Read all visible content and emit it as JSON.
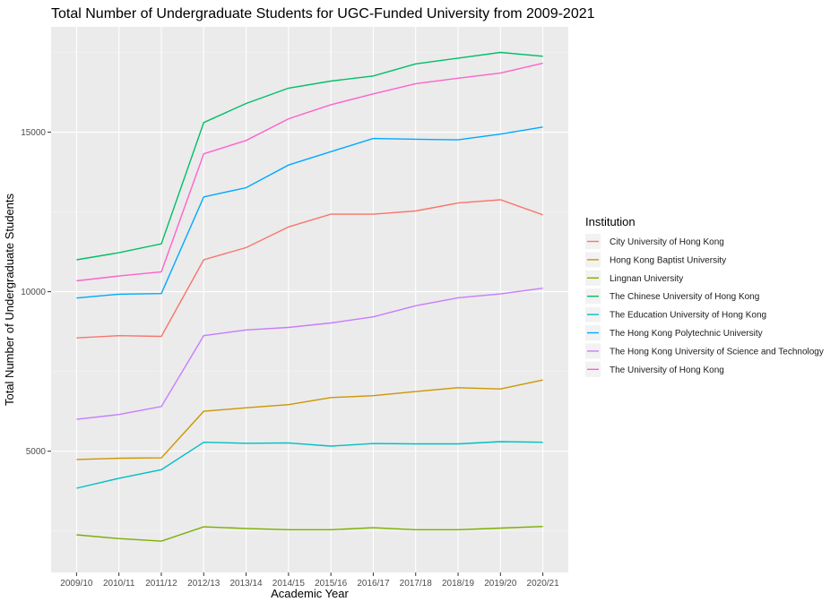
{
  "chart_data": {
    "type": "line",
    "title": "Total Number of Undergraduate Students for UGC-Funded University from 2009-2021",
    "xlabel": "Academic Year",
    "ylabel": "Total Number of Undergraduate Students",
    "categories": [
      "2009/10",
      "2010/11",
      "2011/12",
      "2012/13",
      "2013/14",
      "2014/15",
      "2015/16",
      "2016/17",
      "2017/18",
      "2018/19",
      "2019/20",
      "2020/21"
    ],
    "yticks": [
      5000,
      10000,
      15000
    ],
    "ylim": [
      1200,
      18300
    ],
    "grid": true,
    "legend": {
      "title": "Institution",
      "position": "right"
    },
    "series": [
      {
        "name": "City University of Hong Kong",
        "color": "#F8766D",
        "values": [
          8550,
          8620,
          8600,
          11000,
          11380,
          12030,
          12430,
          12430,
          12530,
          12780,
          12880,
          12410
        ]
      },
      {
        "name": "Hong Kong Baptist University",
        "color": "#CD9600",
        "values": [
          4740,
          4780,
          4790,
          6250,
          6360,
          6460,
          6680,
          6740,
          6870,
          6990,
          6950,
          7230
        ]
      },
      {
        "name": "Lingnan University",
        "color": "#7CAE00",
        "values": [
          2380,
          2260,
          2180,
          2630,
          2580,
          2540,
          2540,
          2600,
          2540,
          2540,
          2590,
          2640
        ]
      },
      {
        "name": "The Chinese University of Hong Kong",
        "color": "#00BE67",
        "values": [
          11000,
          11220,
          11500,
          15300,
          15900,
          16380,
          16600,
          16760,
          17140,
          17320,
          17500,
          17380
        ]
      },
      {
        "name": "The Education University of Hong Kong",
        "color": "#00BFC4",
        "values": [
          3840,
          4150,
          4420,
          5280,
          5250,
          5260,
          5160,
          5240,
          5230,
          5230,
          5300,
          5280
        ]
      },
      {
        "name": "The Hong Kong Polytechnic University",
        "color": "#00A9FF",
        "values": [
          9800,
          9920,
          9940,
          12970,
          13260,
          13970,
          14390,
          14800,
          14780,
          14760,
          14940,
          15160
        ]
      },
      {
        "name": "The Hong Kong University of Science and Technology",
        "color": "#C77CFF",
        "values": [
          6000,
          6150,
          6400,
          8620,
          8800,
          8880,
          9020,
          9210,
          9560,
          9810,
          9930,
          10110
        ]
      },
      {
        "name": "The University of Hong Kong",
        "color": "#FF61CC",
        "values": [
          10340,
          10490,
          10620,
          14320,
          14740,
          15420,
          15860,
          16200,
          16520,
          16690,
          16850,
          17160
        ]
      }
    ]
  }
}
